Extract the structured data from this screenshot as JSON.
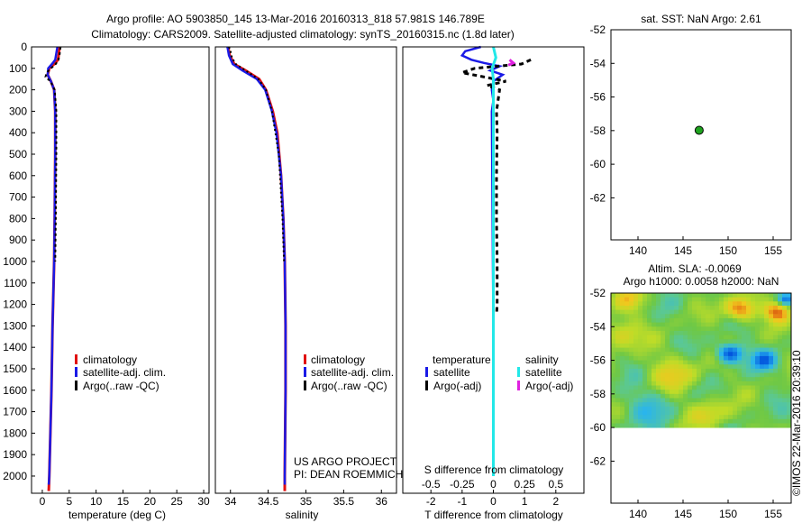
{
  "header": {
    "title_line1": "Argo profile: AO 5903850_145 13-Mar-2016 20160313_818 57.981S 146.789E",
    "title_line2": "Climatology: CARS2009. Satellite-adjusted climatology: synTS_20160315.nc (1.8d later)"
  },
  "colors": {
    "climatology": "#e01010",
    "satellite": "#1a1ae6",
    "argo": "#000000",
    "sal_satellite": "#22e8e8",
    "sal_argo": "#e020e0",
    "marker": "#1fa31f"
  },
  "chart_data": [
    {
      "id": "temperature",
      "type": "line",
      "xlabel": "temperature (deg C)",
      "ylabel": "",
      "xlim": [
        -2,
        31
      ],
      "ylim": [
        2080,
        0
      ],
      "x_ticks": [
        "0",
        "5",
        "10",
        "15",
        "20",
        "25",
        "30"
      ],
      "x_tick_values": [
        0,
        5,
        10,
        15,
        20,
        25,
        30
      ],
      "y_ticks": [
        "0",
        "100",
        "200",
        "300",
        "400",
        "500",
        "600",
        "700",
        "800",
        "900",
        "1000",
        "1100",
        "1200",
        "1300",
        "1400",
        "1500",
        "1600",
        "1700",
        "1800",
        "1900",
        "2000"
      ],
      "y_tick_values": [
        0,
        100,
        200,
        300,
        400,
        500,
        600,
        700,
        800,
        900,
        1000,
        1100,
        1200,
        1300,
        1400,
        1500,
        1600,
        1700,
        1800,
        1900,
        2000
      ],
      "legend": [
        "climatology",
        "satellite-adj. clim.",
        "Argo(..raw -QC)"
      ],
      "series": [
        {
          "name": "climatology",
          "depth": [
            0,
            30,
            60,
            80,
            100,
            130,
            160,
            200,
            300,
            500,
            800,
            1000,
            1300,
            1600,
            2000,
            2070
          ],
          "values": [
            3.2,
            3.1,
            2.9,
            2.2,
            1.3,
            1.0,
            1.6,
            2.2,
            2.4,
            2.4,
            2.3,
            2.2,
            1.9,
            1.7,
            1.3,
            1.2
          ]
        },
        {
          "name": "satellite-adj. clim.",
          "depth": [
            0,
            30,
            60,
            80,
            100,
            130,
            160,
            200,
            300,
            500,
            800,
            1000,
            1300,
            1600,
            2000,
            2040
          ],
          "values": [
            2.8,
            2.6,
            2.4,
            1.8,
            1.1,
            1.0,
            1.6,
            2.2,
            2.4,
            2.4,
            2.3,
            2.2,
            1.9,
            1.7,
            1.3,
            1.2
          ]
        },
        {
          "name": "Argo(..raw -QC)",
          "depth": [
            0,
            20,
            40,
            60,
            80,
            100,
            120,
            140,
            160,
            200,
            300,
            500,
            800,
            1000
          ],
          "values": [
            3.4,
            3.3,
            3.2,
            3.0,
            2.5,
            1.6,
            0.8,
            0.6,
            1.5,
            2.3,
            2.6,
            2.6,
            2.5,
            2.4
          ]
        }
      ]
    },
    {
      "id": "salinity",
      "type": "line",
      "xlabel": "salinity",
      "ylabel": "",
      "xlim": [
        33.8,
        36.2
      ],
      "ylim": [
        2080,
        0
      ],
      "x_ticks": [
        "34",
        "34.5",
        "35",
        "35.5",
        "36"
      ],
      "x_tick_values": [
        34,
        34.5,
        35,
        35.5,
        36
      ],
      "legend": [
        "climatology",
        "satellite-adj. clim.",
        "Argo(..raw -QC)"
      ],
      "series": [
        {
          "name": "climatology",
          "depth": [
            0,
            40,
            80,
            110,
            150,
            200,
            300,
            400,
            600,
            800,
            1000,
            1300,
            1600,
            2000,
            2070
          ],
          "values": [
            33.97,
            33.99,
            34.05,
            34.2,
            34.38,
            34.47,
            34.56,
            34.62,
            34.67,
            34.7,
            34.72,
            34.73,
            34.73,
            34.72,
            34.72
          ]
        },
        {
          "name": "satellite-adj. clim.",
          "depth": [
            0,
            40,
            80,
            110,
            150,
            200,
            300,
            400,
            600,
            800,
            1000,
            1300,
            1600,
            2000,
            2040
          ],
          "values": [
            33.96,
            33.98,
            34.03,
            34.16,
            34.35,
            34.46,
            34.55,
            34.61,
            34.67,
            34.7,
            34.72,
            34.73,
            34.73,
            34.72,
            34.72
          ]
        },
        {
          "name": "Argo(..raw -QC)",
          "depth": [
            0,
            20,
            50,
            80,
            110,
            150,
            200,
            300,
            500,
            800,
            1000
          ],
          "values": [
            33.98,
            34.0,
            34.02,
            34.07,
            34.2,
            34.37,
            34.47,
            34.55,
            34.64,
            34.69,
            34.71
          ]
        }
      ]
    },
    {
      "id": "difference",
      "type": "line",
      "xlabel": "T difference from climatology",
      "x2label": "S difference from climatology",
      "xlim": [
        -2.9,
        2.9
      ],
      "ylim": [
        2080,
        0
      ],
      "x_ticks": [
        "-2",
        "-1",
        "0",
        "1",
        "2"
      ],
      "x_tick_values": [
        -2,
        -1,
        0,
        1,
        2
      ],
      "x2_ticks": [
        "-0.5",
        "-0.25",
        "0",
        "0.25",
        "0.5"
      ],
      "x2_tick_values": [
        -0.5,
        -0.25,
        0,
        0.25,
        0.5
      ],
      "legend_temperature_title": "temperature",
      "legend_salinity_title": "salinity",
      "legend": [
        "satellite",
        "Argo(-adj)",
        "satellite",
        "Argo(-adj)"
      ],
      "series": [
        {
          "name": "T satellite",
          "depth": [
            0,
            20,
            40,
            60,
            75,
            90,
            110,
            130,
            160,
            200,
            250,
            300,
            1300,
            2000
          ],
          "values": [
            -0.4,
            -0.9,
            -1.0,
            -0.7,
            -0.3,
            0.2,
            -0.1,
            0.3,
            0.0,
            -0.05,
            0.0,
            -0.05,
            0.0,
            0.0
          ]
        },
        {
          "name": "T Argo(-adj)",
          "depth": [
            60,
            80,
            100,
            120,
            140,
            160,
            180,
            200,
            250,
            300,
            400,
            600,
            800,
            1000,
            1200,
            1250
          ],
          "values": [
            1.2,
            0.9,
            -0.6,
            -1.0,
            -0.3,
            0.4,
            -0.2,
            0.2,
            0.15,
            0.1,
            0.12,
            0.1,
            0.1,
            0.12,
            0.12,
            0.1
          ]
        },
        {
          "name": "S satellite",
          "depth": [
            0,
            50,
            100,
            150,
            200,
            300,
            1000,
            2000
          ],
          "values": [
            0.0,
            0.02,
            -0.01,
            0.0,
            0.0,
            0.0,
            0.0,
            0.0
          ]
        },
        {
          "name": "S Argo(-adj)",
          "depth": [
            60,
            75,
            85
          ],
          "values": [
            0.13,
            0.16,
            0.12
          ]
        }
      ]
    },
    {
      "id": "sst_map",
      "type": "scatter",
      "title": "sat. SST: NaN Argo: 2.61",
      "xlim": [
        137,
        157
      ],
      "ylim": [
        -64.5,
        -52
      ],
      "x_ticks": [
        "140",
        "145",
        "150",
        "155"
      ],
      "x_tick_values": [
        140,
        145,
        150,
        155
      ],
      "y_ticks": [
        "-52",
        "-54",
        "-56",
        "-58",
        "-60",
        "-62"
      ],
      "y_tick_values": [
        -52,
        -54,
        -56,
        -58,
        -60,
        -62
      ],
      "x": [
        146.789
      ],
      "y": [
        -57.981
      ]
    },
    {
      "id": "sla_map",
      "type": "heatmap",
      "title_line1": "Altim. SLA: -0.0069",
      "title_line2": "Argo h1000: 0.0058 h2000: NaN",
      "xlim": [
        137,
        157
      ],
      "ylim": [
        -64.5,
        -52
      ],
      "heat_ylim": [
        -60,
        -52
      ],
      "x_ticks": [
        "140",
        "145",
        "150",
        "155"
      ],
      "x_tick_values": [
        140,
        145,
        150,
        155
      ],
      "y_ticks": [
        "-52",
        "-54",
        "-56",
        "-58",
        "-60",
        "-62"
      ],
      "y_tick_values": [
        -52,
        -54,
        -56,
        -58,
        -60,
        -62
      ]
    }
  ],
  "annotations": {
    "project_line1": "US ARGO PROJECT",
    "project_line2": "PI: DEAN ROEMMICH",
    "watermark": "©IMOS 22-Mar-2016 20:39:10"
  }
}
